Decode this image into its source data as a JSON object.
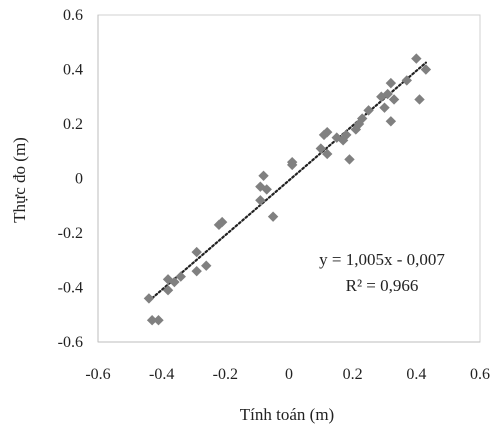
{
  "chart_data": {
    "type": "scatter",
    "title": "",
    "xlabel": "Tính toán (m)",
    "ylabel": "Thực đo (m)",
    "xlim": [
      -0.6,
      0.6
    ],
    "ylim": [
      -0.6,
      0.6
    ],
    "x_ticks": [
      "-0.6",
      "-0.4",
      "-0.2",
      "0",
      "0.2",
      "0.4",
      "0.6"
    ],
    "y_ticks": [
      "-0.6",
      "-0.4",
      "-0.2",
      "0",
      "0.2",
      "0.4",
      "0.6"
    ],
    "grid": false,
    "marker": "diamond",
    "marker_color": "#808080",
    "trendline": {
      "style": "dotted",
      "color": "#222222",
      "slope": 1.005,
      "intercept": -0.007,
      "x_range": [
        -0.44,
        0.43
      ],
      "equation": "y = 1,005x - 0,007",
      "r_squared": "R² = 0,966"
    },
    "points": [
      {
        "x": -0.44,
        "y": -0.44
      },
      {
        "x": -0.43,
        "y": -0.52
      },
      {
        "x": -0.41,
        "y": -0.52
      },
      {
        "x": -0.38,
        "y": -0.37
      },
      {
        "x": -0.38,
        "y": -0.41
      },
      {
        "x": -0.36,
        "y": -0.38
      },
      {
        "x": -0.34,
        "y": -0.36
      },
      {
        "x": -0.29,
        "y": -0.27
      },
      {
        "x": -0.29,
        "y": -0.34
      },
      {
        "x": -0.26,
        "y": -0.32
      },
      {
        "x": -0.22,
        "y": -0.17
      },
      {
        "x": -0.21,
        "y": -0.16
      },
      {
        "x": -0.09,
        "y": -0.03
      },
      {
        "x": -0.09,
        "y": -0.08
      },
      {
        "x": -0.08,
        "y": 0.01
      },
      {
        "x": -0.07,
        "y": -0.04
      },
      {
        "x": -0.05,
        "y": -0.14
      },
      {
        "x": 0.01,
        "y": 0.05
      },
      {
        "x": 0.01,
        "y": 0.06
      },
      {
        "x": 0.1,
        "y": 0.11
      },
      {
        "x": 0.11,
        "y": 0.16
      },
      {
        "x": 0.12,
        "y": 0.17
      },
      {
        "x": 0.12,
        "y": 0.09
      },
      {
        "x": 0.15,
        "y": 0.15
      },
      {
        "x": 0.17,
        "y": 0.14
      },
      {
        "x": 0.18,
        "y": 0.16
      },
      {
        "x": 0.19,
        "y": 0.07
      },
      {
        "x": 0.21,
        "y": 0.18
      },
      {
        "x": 0.22,
        "y": 0.2
      },
      {
        "x": 0.23,
        "y": 0.22
      },
      {
        "x": 0.25,
        "y": 0.25
      },
      {
        "x": 0.29,
        "y": 0.3
      },
      {
        "x": 0.3,
        "y": 0.26
      },
      {
        "x": 0.31,
        "y": 0.31
      },
      {
        "x": 0.32,
        "y": 0.35
      },
      {
        "x": 0.32,
        "y": 0.21
      },
      {
        "x": 0.33,
        "y": 0.29
      },
      {
        "x": 0.37,
        "y": 0.36
      },
      {
        "x": 0.4,
        "y": 0.44
      },
      {
        "x": 0.41,
        "y": 0.29
      },
      {
        "x": 0.43,
        "y": 0.4
      }
    ]
  }
}
